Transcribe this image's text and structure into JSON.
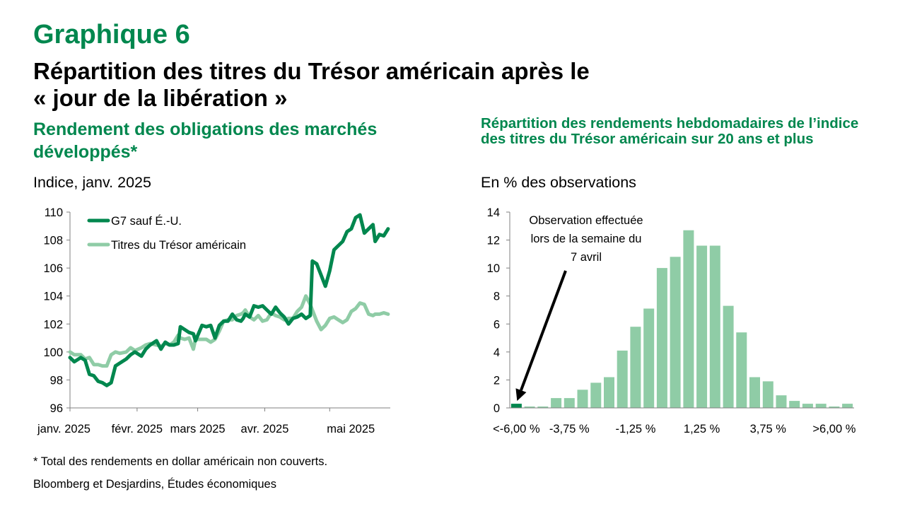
{
  "figure_number": "Graphique 6",
  "title_line1": "Répartition des titres du Trésor américain après le",
  "title_line2": "« jour de la libération »",
  "footnote": "* Total des rendements en dollar américain non couverts.",
  "source": "Bloomberg et Desjardins, Études économiques",
  "colors": {
    "dark_green": "#00874E",
    "light_green": "#8FCCA6",
    "title_green": "#00874E"
  },
  "chart_data": [
    {
      "type": "line",
      "subtitle": "Rendement des obligations des marchés développés*",
      "unit_label": "Indice, janv. 2025",
      "ylim": [
        96,
        110
      ],
      "y_ticks": [
        96,
        98,
        100,
        102,
        104,
        106,
        108,
        110
      ],
      "x_ticks": [
        "janv. 2025",
        "févr. 2025",
        "mars 2025",
        "avr. 2025",
        "mai 2025"
      ],
      "x_dates": [
        "2025-01-01",
        "2025-02-01",
        "2025-03-01",
        "2025-04-01",
        "2025-05-01"
      ],
      "legend_position": "top-left",
      "grid": false,
      "series": [
        {
          "name": "G7 sauf É.-U.",
          "color": "#00874E",
          "points": [
            [
              "2025-01-01",
              99.6
            ],
            [
              "2025-01-03",
              99.3
            ],
            [
              "2025-01-06",
              99.6
            ],
            [
              "2025-01-08",
              99.4
            ],
            [
              "2025-01-10",
              98.4
            ],
            [
              "2025-01-12",
              98.3
            ],
            [
              "2025-01-14",
              97.9
            ],
            [
              "2025-01-16",
              97.8
            ],
            [
              "2025-01-18",
              97.6
            ],
            [
              "2025-01-20",
              97.8
            ],
            [
              "2025-01-22",
              99.0
            ],
            [
              "2025-01-24",
              99.2
            ],
            [
              "2025-01-27",
              99.5
            ],
            [
              "2025-01-29",
              99.8
            ],
            [
              "2025-01-31",
              100.0
            ],
            [
              "2025-02-03",
              99.7
            ],
            [
              "2025-02-05",
              100.2
            ],
            [
              "2025-02-07",
              100.5
            ],
            [
              "2025-02-10",
              100.8
            ],
            [
              "2025-02-12",
              100.2
            ],
            [
              "2025-02-14",
              100.7
            ],
            [
              "2025-02-16",
              100.5
            ],
            [
              "2025-02-18",
              100.5
            ],
            [
              "2025-02-20",
              100.6
            ],
            [
              "2025-02-21",
              101.8
            ],
            [
              "2025-02-23",
              101.6
            ],
            [
              "2025-02-25",
              101.4
            ],
            [
              "2025-02-27",
              101.3
            ],
            [
              "2025-02-28",
              100.8
            ],
            [
              "2025-03-03",
              101.9
            ],
            [
              "2025-03-05",
              101.8
            ],
            [
              "2025-03-07",
              101.9
            ],
            [
              "2025-03-09",
              101.0
            ],
            [
              "2025-03-11",
              101.9
            ],
            [
              "2025-03-13",
              102.2
            ],
            [
              "2025-03-15",
              102.2
            ],
            [
              "2025-03-17",
              102.7
            ],
            [
              "2025-03-19",
              102.3
            ],
            [
              "2025-03-21",
              102.2
            ],
            [
              "2025-03-22",
              102.4
            ],
            [
              "2025-03-23",
              102.7
            ],
            [
              "2025-03-25",
              102.5
            ],
            [
              "2025-03-27",
              103.3
            ],
            [
              "2025-03-29",
              103.2
            ],
            [
              "2025-03-31",
              103.3
            ],
            [
              "2025-04-02",
              103.0
            ],
            [
              "2025-04-04",
              102.7
            ],
            [
              "2025-04-06",
              103.2
            ],
            [
              "2025-04-08",
              102.8
            ],
            [
              "2025-04-10",
              102.5
            ],
            [
              "2025-04-12",
              102.0
            ],
            [
              "2025-04-14",
              102.4
            ],
            [
              "2025-04-16",
              102.5
            ],
            [
              "2025-04-18",
              102.7
            ],
            [
              "2025-04-20",
              102.4
            ],
            [
              "2025-04-22",
              102.6
            ],
            [
              "2025-04-23",
              106.5
            ],
            [
              "2025-04-25",
              106.3
            ],
            [
              "2025-04-27",
              105.5
            ],
            [
              "2025-04-29",
              104.7
            ],
            [
              "2025-05-01",
              105.8
            ],
            [
              "2025-05-03",
              107.3
            ],
            [
              "2025-05-05",
              107.6
            ],
            [
              "2025-05-07",
              107.9
            ],
            [
              "2025-05-09",
              108.6
            ],
            [
              "2025-05-11",
              108.8
            ],
            [
              "2025-05-13",
              109.6
            ],
            [
              "2025-05-15",
              109.8
            ],
            [
              "2025-05-17",
              108.5
            ],
            [
              "2025-05-19",
              108.8
            ],
            [
              "2025-05-21",
              109.1
            ],
            [
              "2025-05-22",
              107.9
            ],
            [
              "2025-05-24",
              108.4
            ],
            [
              "2025-05-26",
              108.3
            ],
            [
              "2025-05-28",
              108.8
            ]
          ]
        },
        {
          "name": "Titres du Trésor américain",
          "color": "#8FCCA6",
          "points": [
            [
              "2025-01-01",
              100.0
            ],
            [
              "2025-01-03",
              99.8
            ],
            [
              "2025-01-06",
              99.8
            ],
            [
              "2025-01-08",
              99.5
            ],
            [
              "2025-01-10",
              99.6
            ],
            [
              "2025-01-12",
              99.1
            ],
            [
              "2025-01-14",
              99.1
            ],
            [
              "2025-01-16",
              99.0
            ],
            [
              "2025-01-18",
              99.0
            ],
            [
              "2025-01-20",
              99.8
            ],
            [
              "2025-01-22",
              100.0
            ],
            [
              "2025-01-24",
              99.9
            ],
            [
              "2025-01-27",
              100.0
            ],
            [
              "2025-01-29",
              100.3
            ],
            [
              "2025-01-31",
              100.1
            ],
            [
              "2025-02-03",
              100.3
            ],
            [
              "2025-02-05",
              100.5
            ],
            [
              "2025-02-07",
              100.6
            ],
            [
              "2025-02-10",
              100.5
            ],
            [
              "2025-02-12",
              100.4
            ],
            [
              "2025-02-14",
              100.6
            ],
            [
              "2025-02-16",
              100.5
            ],
            [
              "2025-02-18",
              100.7
            ],
            [
              "2025-02-20",
              101.2
            ],
            [
              "2025-02-21",
              101.0
            ],
            [
              "2025-02-23",
              100.9
            ],
            [
              "2025-02-25",
              101.0
            ],
            [
              "2025-02-27",
              100.2
            ],
            [
              "2025-02-28",
              100.9
            ],
            [
              "2025-03-03",
              100.9
            ],
            [
              "2025-03-05",
              100.9
            ],
            [
              "2025-03-07",
              100.7
            ],
            [
              "2025-03-09",
              100.9
            ],
            [
              "2025-03-11",
              101.5
            ],
            [
              "2025-03-13",
              102.2
            ],
            [
              "2025-03-15",
              102.3
            ],
            [
              "2025-03-17",
              102.3
            ],
            [
              "2025-03-19",
              102.6
            ],
            [
              "2025-03-21",
              102.7
            ],
            [
              "2025-03-22",
              102.8
            ],
            [
              "2025-03-23",
              103.0
            ],
            [
              "2025-03-25",
              102.5
            ],
            [
              "2025-03-27",
              102.3
            ],
            [
              "2025-03-29",
              102.6
            ],
            [
              "2025-03-31",
              102.2
            ],
            [
              "2025-04-02",
              102.3
            ],
            [
              "2025-04-04",
              102.8
            ],
            [
              "2025-04-06",
              102.6
            ],
            [
              "2025-04-08",
              102.5
            ],
            [
              "2025-04-10",
              102.3
            ],
            [
              "2025-04-12",
              102.4
            ],
            [
              "2025-04-14",
              102.4
            ],
            [
              "2025-04-16",
              102.9
            ],
            [
              "2025-04-18",
              103.2
            ],
            [
              "2025-04-20",
              104.0
            ],
            [
              "2025-04-22",
              103.4
            ],
            [
              "2025-04-23",
              103.0
            ],
            [
              "2025-04-25",
              102.2
            ],
            [
              "2025-04-27",
              101.6
            ],
            [
              "2025-04-29",
              101.9
            ],
            [
              "2025-05-01",
              102.4
            ],
            [
              "2025-05-03",
              102.5
            ],
            [
              "2025-05-05",
              102.3
            ],
            [
              "2025-05-07",
              102.1
            ],
            [
              "2025-05-09",
              102.3
            ],
            [
              "2025-05-11",
              102.9
            ],
            [
              "2025-05-13",
              103.1
            ],
            [
              "2025-05-15",
              103.5
            ],
            [
              "2025-05-17",
              103.4
            ],
            [
              "2025-05-19",
              102.7
            ],
            [
              "2025-05-21",
              102.6
            ],
            [
              "2025-05-22",
              102.7
            ],
            [
              "2025-05-24",
              102.7
            ],
            [
              "2025-05-26",
              102.8
            ],
            [
              "2025-05-28",
              102.7
            ]
          ]
        }
      ]
    },
    {
      "type": "bar",
      "subtitle": "Répartition des rendements hebdomadaires de l’indice des titres du Trésor américain sur 20 ans et plus",
      "unit_label": "En % des observations",
      "ylim": [
        0,
        14
      ],
      "y_ticks": [
        0,
        2,
        4,
        6,
        8,
        10,
        12,
        14
      ],
      "x_tick_labels": [
        "<-6,00 %",
        "-3,75 %",
        "-1,25 %",
        "1,25 %",
        "3,75 %",
        ">6,00 %"
      ],
      "x_tick_indices": [
        0,
        4,
        9,
        14,
        19,
        24
      ],
      "values": [
        0.3,
        0.1,
        0.1,
        0.7,
        0.7,
        1.3,
        1.8,
        2.2,
        4.1,
        5.8,
        7.1,
        10.0,
        10.8,
        12.7,
        11.6,
        11.6,
        7.3,
        5.4,
        2.2,
        1.9,
        0.9,
        0.5,
        0.3,
        0.3,
        0.1,
        0.3
      ],
      "highlight_index": 0,
      "annotation_lines": [
        "Observation effectuée",
        "lors de la semaine du",
        "7 avril"
      ],
      "grid": false
    }
  ]
}
